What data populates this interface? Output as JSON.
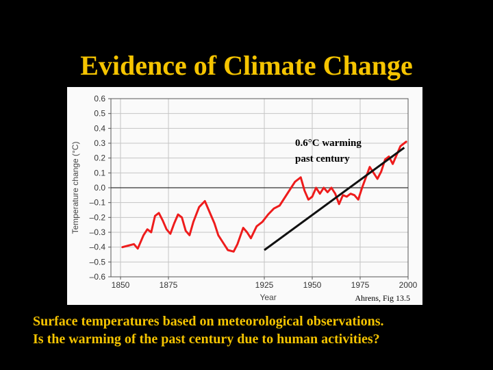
{
  "slide": {
    "title": "Evidence of Climate Change",
    "caption_lines": [
      "Surface temperatures based on meteorological observations.",
      "Is the warming of the past century due to human activities?"
    ]
  },
  "colors": {
    "background": "#000000",
    "title": "#f5c400",
    "series": "#ee1c1c",
    "trend": "#111111"
  },
  "chart_data": {
    "type": "line",
    "title": "",
    "xlabel": "Year",
    "ylabel": "Temperature change (°C)",
    "xlim": [
      1845,
      2000
    ],
    "ylim": [
      -0.6,
      0.6
    ],
    "xticks": [
      1850,
      1875,
      1925,
      1950,
      1975,
      2000
    ],
    "xtick_labels": [
      "1850",
      "1875",
      "1925",
      "1950",
      "1975",
      "2000"
    ],
    "yticks": [
      0.6,
      0.5,
      0.4,
      0.3,
      0.2,
      0.1,
      0.0,
      -0.1,
      -0.2,
      -0.3,
      -0.4,
      -0.5,
      -0.6
    ],
    "ytick_labels": [
      "0.6",
      "0.5",
      "0.4",
      "0.3",
      "0.2",
      "0.1",
      "0.0",
      "–0.1",
      "–0.2",
      "–0.3",
      "–0.4",
      "–0.5",
      "–0.6"
    ],
    "series": [
      {
        "name": "Surface temperature change",
        "x": [
          1851,
          1854,
          1857,
          1859,
          1862,
          1864,
          1866,
          1868,
          1870,
          1872,
          1874,
          1876,
          1878,
          1880,
          1882,
          1884,
          1886,
          1888,
          1891,
          1894,
          1897,
          1899,
          1901,
          1903,
          1906,
          1909,
          1911,
          1914,
          1916,
          1918,
          1921,
          1924,
          1927,
          1930,
          1933,
          1936,
          1939,
          1941,
          1944,
          1946,
          1948,
          1950,
          1952,
          1954,
          1956,
          1958,
          1960,
          1962,
          1964,
          1966,
          1968,
          1970,
          1972,
          1974,
          1976,
          1978,
          1980,
          1982,
          1984,
          1986,
          1988,
          1990,
          1992,
          1994,
          1996,
          1998,
          1999
        ],
        "y": [
          -0.4,
          -0.39,
          -0.38,
          -0.41,
          -0.32,
          -0.28,
          -0.3,
          -0.19,
          -0.17,
          -0.22,
          -0.28,
          -0.31,
          -0.24,
          -0.18,
          -0.2,
          -0.29,
          -0.32,
          -0.23,
          -0.13,
          -0.09,
          -0.18,
          -0.24,
          -0.32,
          -0.36,
          -0.42,
          -0.43,
          -0.38,
          -0.27,
          -0.3,
          -0.34,
          -0.26,
          -0.23,
          -0.18,
          -0.14,
          -0.12,
          -0.06,
          0.0,
          0.04,
          0.07,
          -0.02,
          -0.08,
          -0.06,
          0.0,
          -0.04,
          0.0,
          -0.03,
          0.0,
          -0.04,
          -0.11,
          -0.05,
          -0.06,
          -0.04,
          -0.05,
          -0.08,
          0.0,
          0.07,
          0.14,
          0.1,
          0.06,
          0.11,
          0.19,
          0.21,
          0.16,
          0.22,
          0.28,
          0.3,
          0.31
        ]
      }
    ],
    "trend_line": {
      "x": [
        1925,
        1998
      ],
      "y": [
        -0.42,
        0.27
      ]
    },
    "annotation_lines": [
      "0.6°C warming",
      "past century"
    ],
    "source": "Ahrens, Fig 13.5"
  }
}
